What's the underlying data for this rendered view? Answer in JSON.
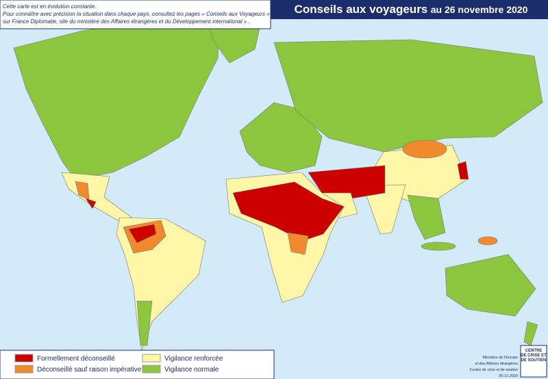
{
  "header": {
    "title": "Conseils aux voyageurs",
    "date": "au 26 novembre 2020"
  },
  "note": {
    "lines": [
      "Cette carte est en évolution constante.",
      "Pour connaître avec précision la situation dans chaque pays, consultez les pages « Conseils aux Voyageurs »",
      "sur France Diplomatie, site du ministère des Affaires étrangères et du Développement international » ."
    ]
  },
  "legend": {
    "items": [
      {
        "name": "Formellement déconseillé",
        "color": "#cc0000"
      },
      {
        "name": "Déconseillé sauf raison impérative",
        "color": "#f08a2c"
      },
      {
        "name": "Vigilance renforcée",
        "color": "#fff6a8"
      },
      {
        "name": "Vigilance normale",
        "color": "#8cc63f"
      }
    ]
  },
  "credits": {
    "lines": [
      "Ministère de l'Europe",
      "et des Affaires étrangères",
      "Centre de crise et de soutien",
      "26-11-2020"
    ]
  },
  "logo": {
    "lines": [
      "CENTRE",
      "DE CRISE ET",
      "DE SOUTIEN"
    ]
  }
}
